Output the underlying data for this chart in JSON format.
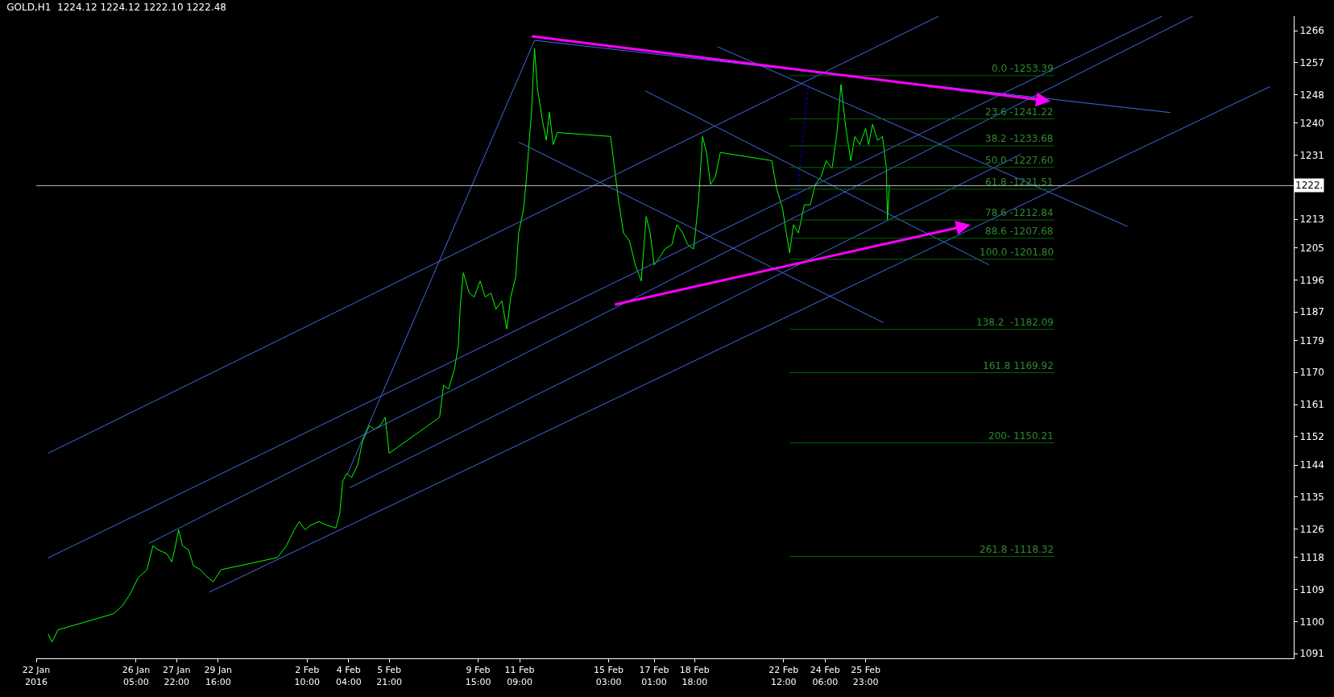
{
  "chart_data": {
    "type": "line",
    "title": "GOLD,H1  1224.12 1224.12 1222.10 1222.48",
    "xlim": [
      "2016-01-22T00:00",
      "2016-03-15T00:00"
    ],
    "ylim": [
      1089.7,
      1270.1
    ],
    "xticks": [
      {
        "value": "2016-01-22T00:00",
        "label": "22 Jan 2016"
      },
      {
        "value": "2016-01-26T05:00",
        "label": "26 Jan 05:00"
      },
      {
        "value": "2016-01-27T22:00",
        "label": "27 Jan 22:00"
      },
      {
        "value": "2016-01-29T16:00",
        "label": "29 Jan 16:00"
      },
      {
        "value": "2016-02-02T10:00",
        "label": "2 Feb 10:00"
      },
      {
        "value": "2016-02-04T04:00",
        "label": "4 Feb 04:00"
      },
      {
        "value": "2016-02-05T21:00",
        "label": "5 Feb 21:00"
      },
      {
        "value": "2016-02-09T15:00",
        "label": "9 Feb 15:00"
      },
      {
        "value": "2016-02-11T09:00",
        "label": "11 Feb 09:00"
      },
      {
        "value": "2016-02-15T03:00",
        "label": "15 Feb 03:00"
      },
      {
        "value": "2016-02-17T01:00",
        "label": "17 Feb 01:00"
      },
      {
        "value": "2016-02-18T18:00",
        "label": "18 Feb 18:00"
      },
      {
        "value": "2016-02-22T12:00",
        "label": "22 Feb 12:00"
      },
      {
        "value": "2016-02-24T06:00",
        "label": "24 Feb 06:00"
      },
      {
        "value": "2016-02-25T23:00",
        "label": "25 Feb 23:00"
      }
    ],
    "yticks": [
      1266,
      1257,
      1248,
      1240,
      1231,
      1213,
      1205,
      1196,
      1187,
      1179,
      1170,
      1161,
      1152,
      1144,
      1135,
      1126,
      1118,
      1109,
      1100,
      1091
    ],
    "grid": false,
    "ref_lines": [
      {
        "axis": "y",
        "value": 1222.48,
        "label": "1222.",
        "color": "#c0c0c0"
      }
    ],
    "series": [
      {
        "color": "#00ff00",
        "x": [
          "2016-01-22T12:00",
          "2016-01-22T16:00",
          "2016-01-22T22:00",
          "2016-01-25T06:00",
          "2016-01-25T15:00",
          "2016-01-25T23:00",
          "2016-01-26T07:00",
          "2016-01-26T16:00",
          "2016-01-26T22:00",
          "2016-01-27T03:00",
          "2016-01-27T12:00",
          "2016-01-27T17:00",
          "2016-01-27T20:00",
          "2016-01-28T00:00",
          "2016-01-28T04:00",
          "2016-01-28T10:00",
          "2016-01-28T15:00",
          "2016-01-28T22:00",
          "2016-01-29T06:00",
          "2016-01-29T11:00",
          "2016-01-29T19:00",
          "2016-02-01T04:00",
          "2016-02-01T13:00",
          "2016-02-01T21:00",
          "2016-02-02T02:00",
          "2016-02-02T08:00",
          "2016-02-02T13:00",
          "2016-02-02T22:00",
          "2016-02-03T07:00",
          "2016-02-03T15:00",
          "2016-02-03T19:00",
          "2016-02-03T22:00",
          "2016-02-04T02:00",
          "2016-02-04T07:00",
          "2016-02-04T13:00",
          "2016-02-04T18:00",
          "2016-02-05T01:00",
          "2016-02-05T06:00",
          "2016-02-05T12:00",
          "2016-02-05T17:00",
          "2016-02-05T21:00",
          "2016-02-08T00:00",
          "2016-02-08T04:00",
          "2016-02-08T09:00",
          "2016-02-08T15:00",
          "2016-02-08T19:00",
          "2016-02-08T21:00",
          "2016-02-09T00:00",
          "2016-02-09T06:00",
          "2016-02-09T11:00",
          "2016-02-09T17:00",
          "2016-02-09T22:00",
          "2016-02-10T04:00",
          "2016-02-10T09:00",
          "2016-02-10T15:00",
          "2016-02-10T20:00",
          "2016-02-11T00:00",
          "2016-02-11T05:00",
          "2016-02-11T08:00",
          "2016-02-11T13:00",
          "2016-02-11T16:00",
          "2016-02-11T19:00",
          "2016-02-11T21:00",
          "2016-02-12T00:00",
          "2016-02-12T03:00",
          "2016-02-12T08:00",
          "2016-02-12T12:00",
          "2016-02-12T15:00",
          "2016-02-12T19:00",
          "2016-02-12T23:00",
          "2016-02-15T05:00",
          "2016-02-15T09:00",
          "2016-02-15T13:00",
          "2016-02-15T18:00",
          "2016-02-16T00:00",
          "2016-02-16T06:00",
          "2016-02-16T12:00",
          "2016-02-16T17:00",
          "2016-02-16T21:00",
          "2016-02-17T01:00",
          "2016-02-17T07:00",
          "2016-02-17T12:00",
          "2016-02-17T19:00",
          "2016-02-18T00:00",
          "2016-02-18T06:00",
          "2016-02-18T11:00",
          "2016-02-18T17:00",
          "2016-02-18T22:00",
          "2016-02-19T02:00",
          "2016-02-19T06:00",
          "2016-02-19T10:00",
          "2016-02-19T15:00",
          "2016-02-19T20:00",
          "2016-02-22T00:00",
          "2016-02-22T05:00",
          "2016-02-22T11:00",
          "2016-02-22T14:00",
          "2016-02-22T18:00",
          "2016-02-22T22:00",
          "2016-02-23T03:00",
          "2016-02-23T09:00",
          "2016-02-23T15:00",
          "2016-02-23T20:00",
          "2016-02-24T02:00",
          "2016-02-24T07:00",
          "2016-02-24T13:00",
          "2016-02-24T18:00",
          "2016-02-24T22:00",
          "2016-02-25T03:00",
          "2016-02-25T08:00",
          "2016-02-25T12:00",
          "2016-02-25T17:00",
          "2016-02-25T23:00",
          "2016-02-26T02:00",
          "2016-02-26T06:00",
          "2016-02-26T11:00",
          "2016-02-26T16:00",
          "2016-02-26T20:00",
          "2016-02-26T21:00",
          "2016-02-26T23:00"
        ],
        "values": [
          1096.5,
          1094.3,
          1097.7,
          1102.2,
          1104.4,
          1107.8,
          1112.3,
          1114.6,
          1121.3,
          1120.2,
          1119.1,
          1116.8,
          1120.2,
          1125.8,
          1121.3,
          1120.2,
          1115.7,
          1114.6,
          1112.3,
          1111.2,
          1114.6,
          1118.0,
          1121.3,
          1125.8,
          1128.1,
          1125.8,
          1127.0,
          1128.1,
          1127.0,
          1126.3,
          1130.3,
          1139.4,
          1141.6,
          1140.5,
          1143.9,
          1150.6,
          1155.1,
          1154.0,
          1155.1,
          1157.4,
          1147.3,
          1157.4,
          1166.4,
          1165.3,
          1170.9,
          1177.7,
          1189.0,
          1198.0,
          1192.3,
          1191.2,
          1195.7,
          1191.2,
          1192.3,
          1187.8,
          1190.1,
          1182.2,
          1191.2,
          1196.8,
          1209.2,
          1216.0,
          1225.0,
          1236.3,
          1243.1,
          1261.1,
          1249.8,
          1240.8,
          1235.2,
          1243.1,
          1234.0,
          1237.4,
          1236.3,
          1227.3,
          1218.3,
          1209.2,
          1207.0,
          1200.2,
          1195.7,
          1213.8,
          1209.2,
          1200.2,
          1202.5,
          1204.7,
          1205.9,
          1211.5,
          1209.2,
          1205.9,
          1204.7,
          1218.3,
          1236.3,
          1231.8,
          1222.8,
          1225.0,
          1231.8,
          1229.5,
          1221.6,
          1216.0,
          1210.4,
          1203.6,
          1211.5,
          1209.2,
          1217.1,
          1217.1,
          1222.8,
          1225.0,
          1229.5,
          1227.3,
          1237.4,
          1250.9,
          1238.5,
          1229.5,
          1236.3,
          1234.0,
          1238.5,
          1234.0,
          1239.7,
          1235.2,
          1236.3,
          1227.3,
          1212.6,
          1222.48
        ]
      },
      {
        "color": "#4169e1",
        "x": [
          "2016-01-22T12:00",
          "2016-02-29T01:00"
        ],
        "values": [
          1147.3,
          1270.1
        ]
      },
      {
        "color": "#4169e1",
        "x": [
          "2016-01-22T12:00",
          "2016-03-09T11:00"
        ],
        "values": [
          1117.9,
          1270.1
        ]
      },
      {
        "color": "#4169e1",
        "x": [
          "2016-01-26T18:00",
          "2016-03-10T18:00"
        ],
        "values": [
          1122.0,
          1270.1
        ]
      },
      {
        "color": "#4169e1",
        "x": [
          "2016-01-29T07:00",
          "2016-03-14T00:00"
        ],
        "values": [
          1108.3,
          1250.3
        ]
      },
      {
        "color": "#4169e1",
        "x": [
          "2016-02-04T05:00",
          "2016-03-03T12:00"
        ],
        "values": [
          1137.6,
          1231.3
        ]
      },
      {
        "color": "#4169e1",
        "x": [
          "2016-02-04T03:00",
          "2016-02-12T00:00"
        ],
        "values": [
          1141.6,
          1263.3
        ]
      },
      {
        "color": "#4169e1",
        "x": [
          "2016-02-11T08:00",
          "2016-02-26T17:00"
        ],
        "values": [
          1234.7,
          1184.0
        ]
      },
      {
        "color": "#4169e1",
        "x": [
          "2016-02-16T16:00",
          "2016-03-02T04:00"
        ],
        "values": [
          1249.1,
          1200.2
        ]
      },
      {
        "color": "#4169e1",
        "x": [
          "2016-02-19T17:00",
          "2016-03-08T00:00"
        ],
        "values": [
          1261.5,
          1211.0
        ]
      },
      {
        "color": "#4169e1",
        "x": [
          "2016-02-12T00:00",
          "2016-03-09T19:00"
        ],
        "values": [
          1263.3,
          1243.0
        ]
      },
      {
        "color": "#0000ff",
        "x": [
          "2016-02-23T01:00",
          "2016-02-23T14:00"
        ],
        "values": [
          1218.3,
          1253.2
        ],
        "line_style": "dotted"
      },
      {
        "name": "0.0 -1253.39",
        "color": "#006400",
        "x": [
          "2016-02-22T18:00",
          "2016-03-04T22:00"
        ],
        "values": [
          1253.39,
          1253.39
        ]
      },
      {
        "name": "23.6 -1241.22",
        "color": "#006400",
        "x": [
          "2016-02-22T18:00",
          "2016-03-04T22:00"
        ],
        "values": [
          1241.22,
          1241.22
        ]
      },
      {
        "name": "38.2 -1233.68",
        "color": "#006400",
        "x": [
          "2016-02-22T18:00",
          "2016-03-04T22:00"
        ],
        "values": [
          1233.68,
          1233.68
        ]
      },
      {
        "name": "50.0 -1227.60",
        "color": "#006400",
        "x": [
          "2016-02-22T18:00",
          "2016-03-04T22:00"
        ],
        "values": [
          1227.6,
          1227.6
        ]
      },
      {
        "name": "61.8 -1221.51",
        "color": "#006400",
        "x": [
          "2016-02-22T18:00",
          "2016-03-04T22:00"
        ],
        "values": [
          1221.51,
          1221.51
        ]
      },
      {
        "name": "78.6 -1212.84",
        "color": "#006400",
        "x": [
          "2016-02-22T18:00",
          "2016-03-04T22:00"
        ],
        "values": [
          1212.84,
          1212.84
        ]
      },
      {
        "name": "88.6 -1207.68",
        "color": "#006400",
        "x": [
          "2016-02-22T18:00",
          "2016-03-04T22:00"
        ],
        "values": [
          1207.68,
          1207.68
        ]
      },
      {
        "name": "100.0 -1201.80",
        "color": "#006400",
        "x": [
          "2016-02-22T18:00",
          "2016-03-04T22:00"
        ],
        "values": [
          1201.8,
          1201.8
        ]
      },
      {
        "name": "138.2  -1182.09",
        "color": "#006400",
        "x": [
          "2016-02-22T18:00",
          "2016-03-04T22:00"
        ],
        "values": [
          1182.09,
          1182.09
        ]
      },
      {
        "name": "161.8 1169.92",
        "color": "#006400",
        "x": [
          "2016-02-22T18:00",
          "2016-03-04T22:00"
        ],
        "values": [
          1169.92,
          1169.92
        ]
      },
      {
        "name": "200- 1150.21",
        "color": "#006400",
        "x": [
          "2016-02-22T18:00",
          "2016-03-04T22:00"
        ],
        "values": [
          1150.21,
          1150.21
        ]
      },
      {
        "name": "261.8 -1118.32",
        "color": "#006400",
        "x": [
          "2016-02-22T18:00",
          "2016-03-04T22:00"
        ],
        "values": [
          1118.32,
          1118.32
        ]
      }
    ]
  }
}
